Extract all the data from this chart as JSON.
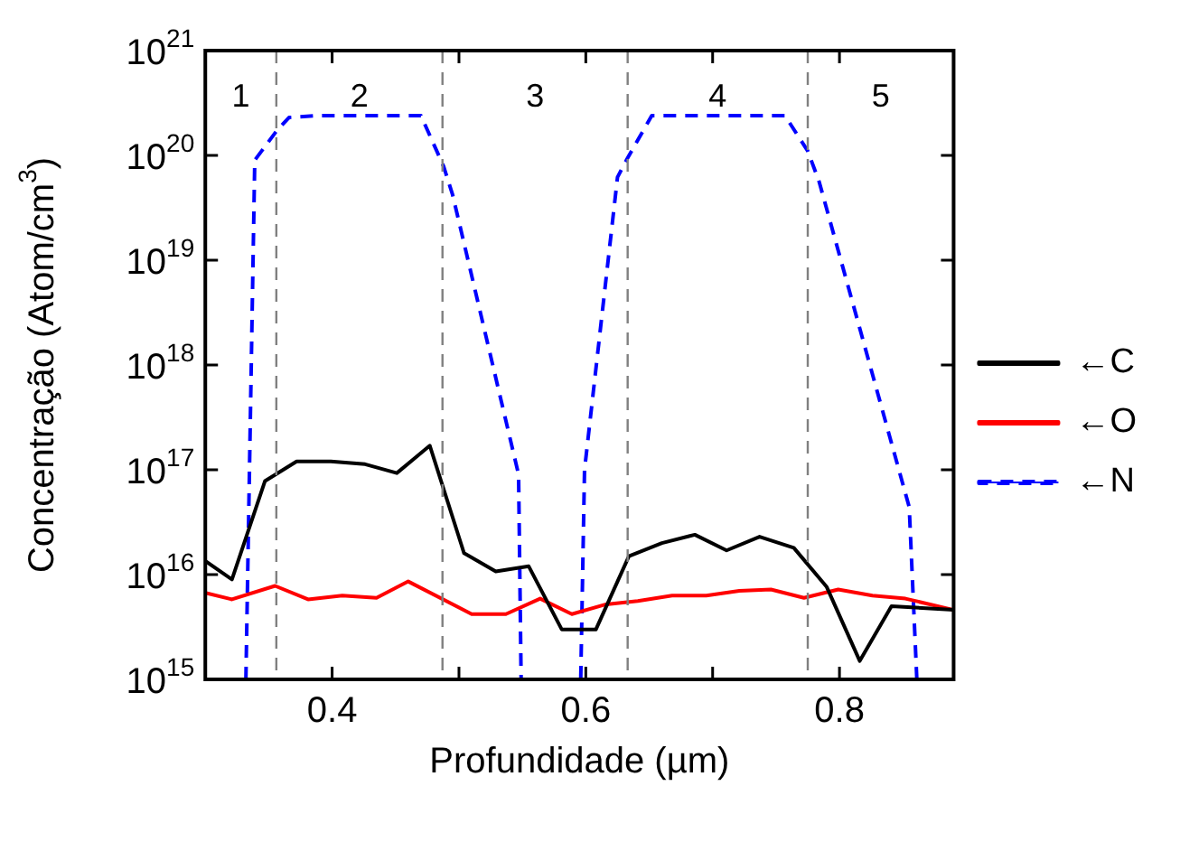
{
  "chart_data": {
    "type": "line",
    "xlabel": "Profundidade (µm)",
    "ylabel": "Concentração (Atom/cm$^{3}$)",
    "log": "y",
    "xlim": [
      0.3,
      0.89
    ],
    "xticks": [
      0.4,
      {
        "value": 0.5,
        "label": null
      },
      0.6,
      {
        "value": 0.7,
        "label": null
      },
      0.8
    ],
    "ylim": [
      1000000000000000.0,
      1e+21
    ],
    "yticks": [
      {
        "value": 1000000000000000.0,
        "label": "10$^{15}$"
      },
      {
        "value": 1e+16,
        "label": "10$^{16}$"
      },
      {
        "value": 1e+17,
        "label": "10$^{17}$"
      },
      {
        "value": 1e+18,
        "label": "10$^{18}$"
      },
      {
        "value": 1e+19,
        "label": "10$^{19}$"
      },
      {
        "value": 1e+20,
        "label": "10$^{20}$"
      },
      {
        "value": 1e+21,
        "label": "10$^{21}$"
      }
    ],
    "grid": false,
    "legend": "right",
    "marker": "none",
    "series": [
      {
        "name": "←C",
        "color": "#000000",
        "line_style": "solid",
        "x": [
          0.3,
          0.321,
          0.347,
          0.372,
          0.399,
          0.426,
          0.451,
          0.477,
          0.504,
          0.529,
          0.555,
          0.581,
          0.608,
          0.634,
          0.66,
          0.686,
          0.711,
          0.737,
          0.764,
          0.79,
          0.816,
          0.841,
          0.89
        ],
        "values": [
          1.35e+16,
          9000000000000000.0,
          7.8e+16,
          1.2e+17,
          1.2e+17,
          1.13e+17,
          9.3e+16,
          1.7e+17,
          1.6e+16,
          1.07e+16,
          1.2e+16,
          3000000000000000.0,
          3000000000000000.0,
          1.5e+16,
          2e+16,
          2.4e+16,
          1.7e+16,
          2.3e+16,
          1.8e+16,
          7600000000000000.0,
          1500000000000000.0,
          5000000000000000.0,
          4600000000000000.0
        ]
      },
      {
        "name": "←O",
        "color": "#ff0000",
        "line_style": "solid",
        "x": [
          0.3,
          0.321,
          0.355,
          0.381,
          0.408,
          0.435,
          0.46,
          0.51,
          0.537,
          0.564,
          0.589,
          0.616,
          0.641,
          0.668,
          0.695,
          0.721,
          0.746,
          0.772,
          0.799,
          0.826,
          0.852,
          0.89
        ],
        "values": [
          6700000000000000.0,
          5800000000000000.0,
          7800000000000000.0,
          5800000000000000.0,
          6300000000000000.0,
          6000000000000000.0,
          8600000000000000.0,
          4200000000000000.0,
          4200000000000000.0,
          5900000000000000.0,
          4200000000000000.0,
          5200000000000000.0,
          5600000000000000.0,
          6300000000000000.0,
          6300000000000000.0,
          7000000000000000.0,
          7200000000000000.0,
          6000000000000000.0,
          7200000000000000.0,
          6300000000000000.0,
          5900000000000000.0,
          4600000000000000.0
        ]
      },
      {
        "name": "←N",
        "color": "#0000ff",
        "line_style": "dashed",
        "x": [
          0.332,
          0.339,
          0.356,
          0.366,
          0.39,
          0.47,
          0.488,
          0.495,
          0.547,
          0.549,
          0.596,
          0.599,
          0.625,
          0.632,
          0.652,
          0.757,
          0.775,
          0.784,
          0.855,
          0.861
        ],
        "values": [
          1000000000000000.0,
          9e+19,
          1.7e+20,
          2.3e+20,
          2.4e+20,
          2.4e+20,
          7.8e+19,
          4.2e+19,
          9e+16,
          1000000000000000.0,
          1000000000000000.0,
          1e+17,
          6.2e+19,
          9e+19,
          2.4e+20,
          2.4e+20,
          1.1e+20,
          5.6e+19,
          4.4e+16,
          1000000000000000.0
        ]
      }
    ],
    "ref_lines": [
      {
        "axis": "x",
        "value": 0.356,
        "color": "#808080",
        "line_style": "dashed"
      },
      {
        "axis": "x",
        "value": 0.487,
        "color": "#808080",
        "line_style": "dashed"
      },
      {
        "axis": "x",
        "value": 0.633,
        "color": "#808080",
        "line_style": "dashed"
      },
      {
        "axis": "x",
        "value": 0.775,
        "color": "#808080",
        "line_style": "dashed"
      }
    ],
    "annotations": [
      "1",
      "2",
      "3",
      "4",
      "5"
    ]
  }
}
